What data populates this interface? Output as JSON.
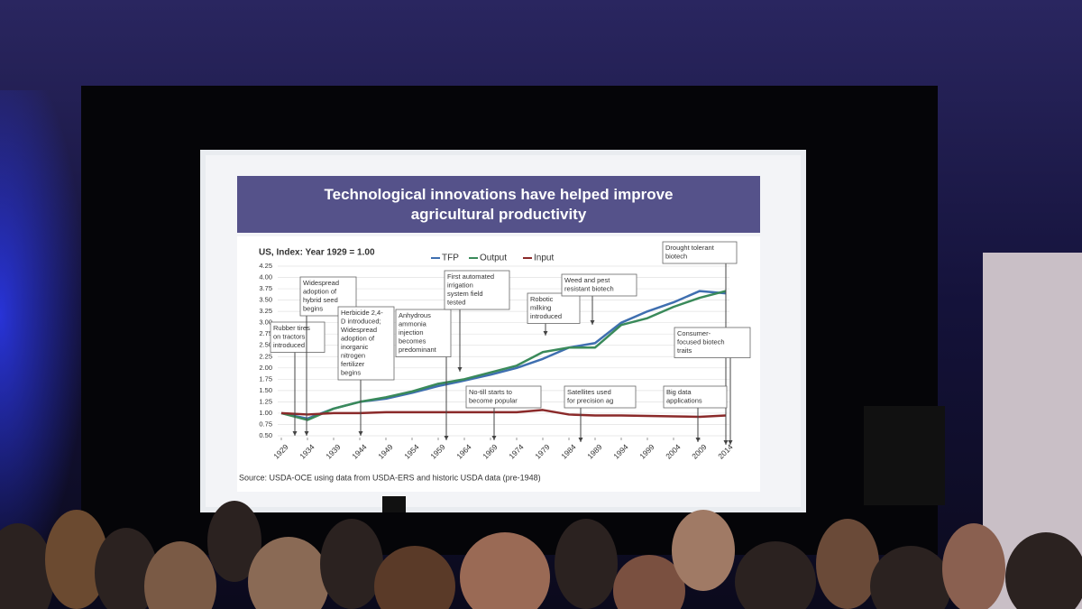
{
  "chart_data": {
    "type": "line",
    "title": "Technological innovations have helped improve agricultural productivity",
    "subtitle": "US, Index: Year 1929 = 1.00",
    "source": "Source: USDA-OCE using data from USDA-ERS and historic USDA data (pre-1948)",
    "x": [
      1929,
      1934,
      1939,
      1944,
      1949,
      1954,
      1959,
      1964,
      1969,
      1974,
      1979,
      1984,
      1989,
      1994,
      1999,
      2004,
      2009,
      2014
    ],
    "series": [
      {
        "name": "TFP",
        "color": "#3f6fb0",
        "values": [
          1.0,
          0.88,
          1.1,
          1.25,
          1.32,
          1.45,
          1.6,
          1.72,
          1.85,
          2.0,
          2.2,
          2.45,
          2.55,
          3.0,
          3.25,
          3.45,
          3.7,
          3.65
        ]
      },
      {
        "name": "Output",
        "color": "#3a8a5a",
        "values": [
          1.0,
          0.85,
          1.1,
          1.25,
          1.35,
          1.48,
          1.65,
          1.75,
          1.9,
          2.05,
          2.35,
          2.45,
          2.45,
          2.95,
          3.1,
          3.35,
          3.55,
          3.7
        ]
      },
      {
        "name": "Input",
        "color": "#8b2a2a",
        "values": [
          1.0,
          0.97,
          1.0,
          1.0,
          1.02,
          1.02,
          1.02,
          1.02,
          1.02,
          1.02,
          1.07,
          0.97,
          0.95,
          0.95,
          0.94,
          0.93,
          0.92,
          0.95
        ]
      }
    ],
    "xlim": [
      1929,
      2014
    ],
    "xticks": [
      1929,
      1934,
      1939,
      1944,
      1949,
      1954,
      1959,
      1964,
      1969,
      1974,
      1979,
      1984,
      1989,
      1994,
      1999,
      2004,
      2009,
      2014
    ],
    "ylim": [
      0.5,
      4.25
    ],
    "yticks": [
      {
        "value": 0.5,
        "label": "0.50"
      },
      {
        "value": 0.75,
        "label": "0.75"
      },
      {
        "value": 1,
        "label": "1.00"
      },
      {
        "value": 1.25,
        "label": "1.25"
      },
      {
        "value": 1.5,
        "label": "1.50"
      },
      {
        "value": 1.75,
        "label": "1.75"
      },
      {
        "value": 2,
        "label": "2.00"
      },
      {
        "value": 2.25,
        "label": "2.25"
      },
      {
        "value": 2.5,
        "label": "2.50"
      },
      {
        "value": 2.75,
        "label": "2.75"
      },
      {
        "value": 3,
        "label": "3.00"
      },
      {
        "value": 3.25,
        "label": "3.25"
      },
      {
        "value": 3.5,
        "label": "3.50"
      },
      {
        "value": 3.75,
        "label": "3.75"
      },
      {
        "value": 4,
        "label": "4.00"
      },
      {
        "value": 4.25,
        "label": "4.25"
      }
    ],
    "grid": true,
    "legend": "top",
    "annotations": [
      {
        "lines": [
          "Rubber tires",
          "on tractors",
          "introduced"
        ]
      },
      {
        "lines": [
          "Widespread",
          "adoption of",
          "hybrid seed",
          "begins"
        ]
      },
      {
        "lines": [
          "Herbicide 2,4-",
          "D introduced;",
          "Widespread",
          "adoption of",
          "inorganic",
          "nitrogen",
          "fertilizer",
          "begins"
        ]
      },
      {
        "lines": [
          "Anhydrous",
          "ammonia",
          "injection",
          "becomes",
          "predominant"
        ]
      },
      {
        "lines": [
          "First automated",
          "irrigation",
          "system field",
          "tested"
        ]
      },
      {
        "lines": [
          "Robotic",
          "milking",
          "introduced"
        ]
      },
      {
        "lines": [
          "Weed and pest",
          "resistant biotech"
        ]
      },
      {
        "lines": [
          "Drought tolerant",
          "biotech"
        ]
      },
      {
        "lines": [
          "Consumer-",
          "focused biotech",
          "traits"
        ]
      },
      {
        "lines": [
          "No-till starts to",
          "become popular"
        ]
      },
      {
        "lines": [
          "Satellites used",
          "for precision ag"
        ]
      },
      {
        "lines": [
          "Big data",
          "applications"
        ]
      }
    ]
  }
}
